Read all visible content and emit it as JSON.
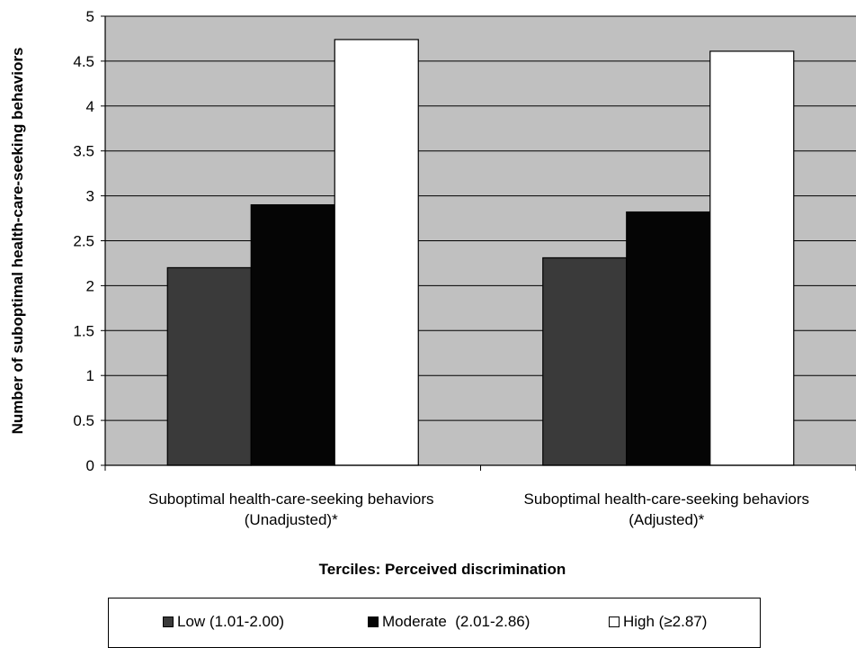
{
  "chart_data": {
    "type": "bar",
    "title": "",
    "ylabel": "Number of suboptimal health-care-seeking behaviors",
    "xlabel": "Terciles: Perceived discrimination",
    "ylim": [
      0,
      5
    ],
    "yticks": [
      "0",
      "0.5",
      "1",
      "1.5",
      "2",
      "2.5",
      "3",
      "3.5",
      "4",
      "4.5",
      "5"
    ],
    "categories": [
      [
        "Suboptimal health-care-seeking behaviors",
        "(Unadjusted)*"
      ],
      [
        "Suboptimal health-care-seeking behaviors",
        "(Adjusted)*"
      ]
    ],
    "series": [
      {
        "name": "Low (1.01-2.00)",
        "color": "#3a3a3a",
        "values": [
          2.2,
          2.31
        ]
      },
      {
        "name": "Moderate  (2.01-2.86)",
        "color": "#050505",
        "values": [
          2.9,
          2.82
        ]
      },
      {
        "name": "High (≥2.87)",
        "color": "#ffffff",
        "values": [
          4.74,
          4.61
        ]
      }
    ],
    "grid": true,
    "legend_position": "bottom",
    "plot_background": "#c0c0c0"
  }
}
